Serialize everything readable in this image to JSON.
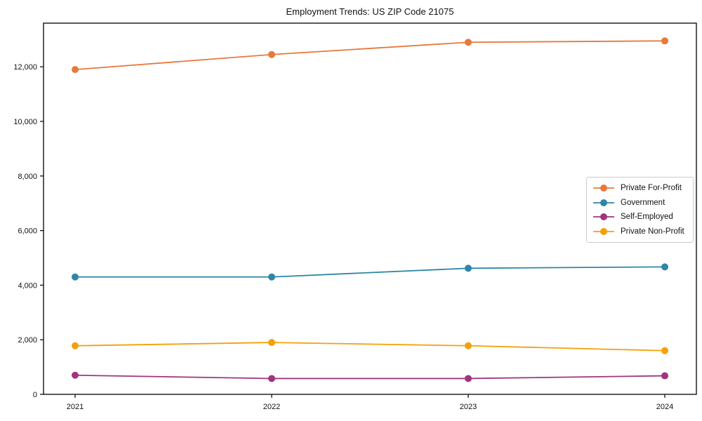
{
  "chart_data": {
    "type": "line",
    "title": "Employment Trends: US ZIP Code 21075",
    "xlabel": "",
    "ylabel": "",
    "x": [
      2021,
      2022,
      2023,
      2024
    ],
    "x_tick_labels": [
      "2021",
      "2022",
      "2023",
      "2024"
    ],
    "y_ticks": [
      0,
      2000,
      4000,
      6000,
      8000,
      10000,
      12000
    ],
    "y_tick_labels": [
      "0",
      "2,000",
      "4,000",
      "6,000",
      "8,000",
      "10,000",
      "12,000"
    ],
    "ylim": [
      0,
      13600
    ],
    "grid": false,
    "legend_position": "center-right",
    "marker": "circle",
    "series": [
      {
        "name": "Private For-Profit",
        "color": "#e8783c",
        "values": [
          11900,
          12450,
          12900,
          12950
        ]
      },
      {
        "name": "Government",
        "color": "#2e86a8",
        "values": [
          4300,
          4300,
          4620,
          4670
        ]
      },
      {
        "name": "Self-Employed",
        "color": "#a1347f",
        "values": [
          700,
          580,
          580,
          680
        ]
      },
      {
        "name": "Private Non-Profit",
        "color": "#f5a00a",
        "values": [
          1780,
          1900,
          1780,
          1600
        ]
      }
    ]
  }
}
